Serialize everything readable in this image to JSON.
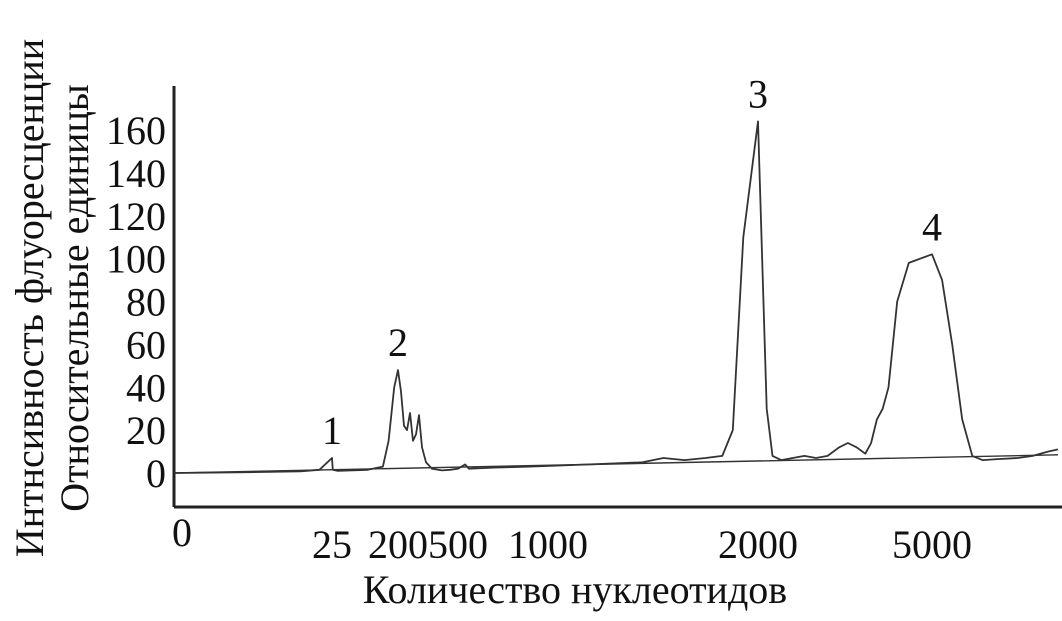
{
  "chart_data": {
    "type": "line",
    "ylabel_line1": "Интнсивность флуоресценции",
    "ylabel_line2": "Относительные единицы",
    "xlabel": "Количество нуклеотидов",
    "ylim": [
      0,
      170
    ],
    "yticks": [
      0,
      20,
      40,
      60,
      80,
      100,
      120,
      140,
      160
    ],
    "x_origin_label": "0",
    "xticks": [
      {
        "label": "25",
        "value": 25
      },
      {
        "label": "200",
        "value": 200
      },
      {
        "label": "500",
        "value": 500
      },
      {
        "label": "1000",
        "value": 1000
      },
      {
        "label": "2000",
        "value": 2000
      },
      {
        "label": "5000",
        "value": 5000
      }
    ],
    "peak_labels": [
      {
        "label": "1",
        "x": 25,
        "y": 7
      },
      {
        "label": "2",
        "x": 200,
        "y": 48
      },
      {
        "label": "3",
        "x": 2000,
        "y": 164
      },
      {
        "label": "4",
        "x": 5000,
        "y": 102
      }
    ],
    "series": [
      {
        "points": [
          [
            0,
            0
          ],
          [
            10,
            0.3
          ],
          [
            20,
            0.8
          ],
          [
            23,
            1.5
          ],
          [
            25,
            7
          ],
          [
            27,
            1.5
          ],
          [
            40,
            1
          ],
          [
            80,
            1.2
          ],
          [
            120,
            1.5
          ],
          [
            160,
            3
          ],
          [
            175,
            15
          ],
          [
            190,
            40
          ],
          [
            200,
            48
          ],
          [
            215,
            38
          ],
          [
            230,
            22
          ],
          [
            245,
            20
          ],
          [
            260,
            28
          ],
          [
            275,
            15
          ],
          [
            290,
            18
          ],
          [
            305,
            27
          ],
          [
            320,
            12
          ],
          [
            340,
            5
          ],
          [
            370,
            2
          ],
          [
            420,
            1.2
          ],
          [
            460,
            1.5
          ],
          [
            500,
            2
          ],
          [
            540,
            4
          ],
          [
            560,
            2
          ],
          [
            700,
            2.5
          ],
          [
            900,
            3
          ],
          [
            1200,
            4
          ],
          [
            1450,
            5
          ],
          [
            1550,
            7
          ],
          [
            1650,
            6
          ],
          [
            1750,
            7
          ],
          [
            1830,
            8
          ],
          [
            1880,
            20
          ],
          [
            1930,
            110
          ],
          [
            2000,
            164
          ],
          [
            2060,
            110
          ],
          [
            2150,
            30
          ],
          [
            2250,
            8
          ],
          [
            2400,
            6
          ],
          [
            2600,
            7
          ],
          [
            2800,
            8
          ],
          [
            3000,
            7
          ],
          [
            3200,
            8
          ],
          [
            3400,
            12
          ],
          [
            3550,
            14
          ],
          [
            3700,
            12
          ],
          [
            3850,
            9
          ],
          [
            3950,
            14
          ],
          [
            4050,
            25
          ],
          [
            4150,
            30
          ],
          [
            4250,
            40
          ],
          [
            4400,
            80
          ],
          [
            4600,
            98
          ],
          [
            5000,
            102
          ],
          [
            5200,
            90
          ],
          [
            5400,
            60
          ],
          [
            5600,
            25
          ],
          [
            5800,
            8
          ],
          [
            6000,
            6
          ],
          [
            6300,
            6.5
          ],
          [
            6700,
            7
          ],
          [
            7000,
            8
          ],
          [
            7300,
            10
          ],
          [
            7500,
            11
          ]
        ]
      },
      {
        "points": [
          [
            0,
            0
          ],
          [
            7500,
            8.5
          ]
        ]
      }
    ]
  }
}
